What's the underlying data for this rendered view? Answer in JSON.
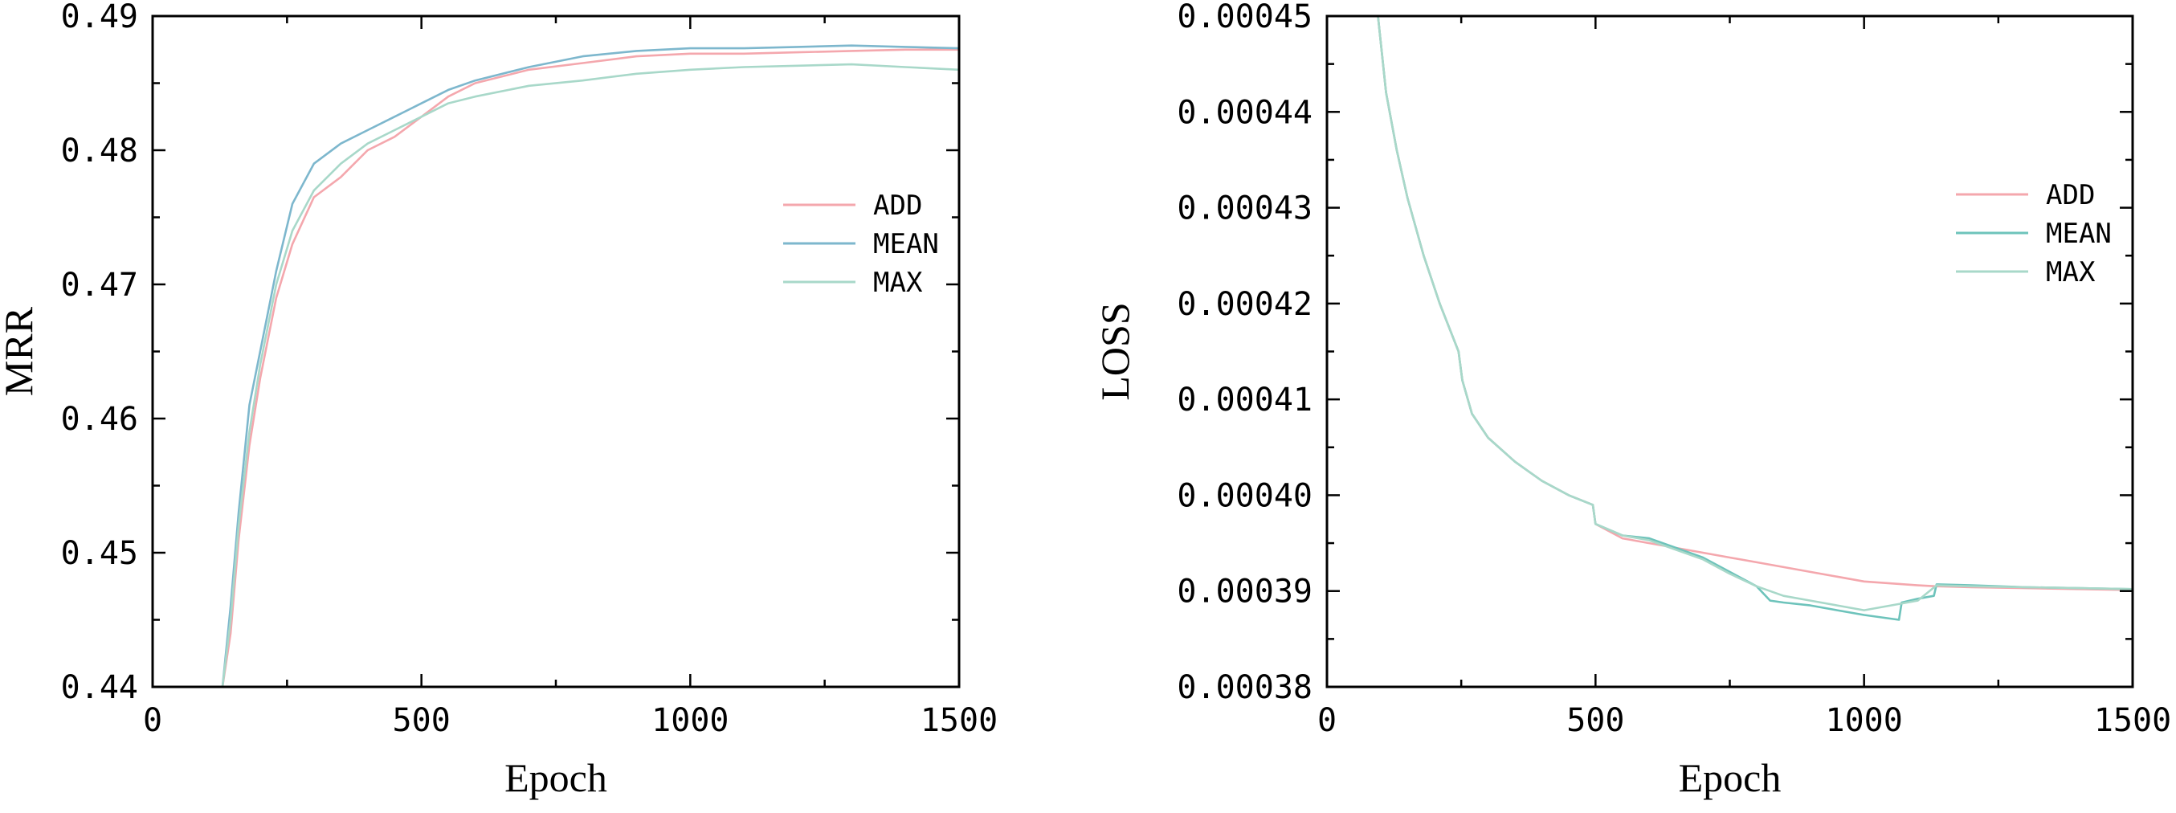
{
  "chart_data": [
    {
      "type": "line",
      "xlabel": "Epoch",
      "ylabel": "MRR",
      "xlim": [
        0,
        1500
      ],
      "ylim": [
        0.44,
        0.49
      ],
      "xticks": [
        0,
        500,
        1000,
        1500
      ],
      "xtick_labels": [
        "0",
        "500",
        "1000",
        "1500"
      ],
      "yticks": [
        0.44,
        0.45,
        0.46,
        0.47,
        0.48,
        0.49
      ],
      "ytick_labels": [
        "0.44",
        "0.45",
        "0.46",
        "0.47",
        "0.48",
        "0.49"
      ],
      "grid": false,
      "legend_position": "right",
      "series": [
        {
          "name": "ADD",
          "color": "#f4a7ad",
          "x": [
            130,
            145,
            160,
            180,
            200,
            230,
            260,
            300,
            350,
            400,
            450,
            500,
            550,
            600,
            700,
            800,
            900,
            1000,
            1100,
            1200,
            1300,
            1400,
            1500
          ],
          "y": [
            0.44,
            0.444,
            0.451,
            0.458,
            0.463,
            0.469,
            0.473,
            0.4765,
            0.478,
            0.48,
            0.481,
            0.4825,
            0.484,
            0.485,
            0.486,
            0.4865,
            0.487,
            0.4872,
            0.4872,
            0.4873,
            0.4874,
            0.4875,
            0.4875
          ]
        },
        {
          "name": "MEAN",
          "color": "#7db7cd",
          "x": [
            130,
            145,
            160,
            180,
            200,
            230,
            260,
            300,
            350,
            400,
            450,
            500,
            550,
            600,
            700,
            800,
            900,
            1000,
            1100,
            1200,
            1300,
            1400,
            1500
          ],
          "y": [
            0.44,
            0.446,
            0.453,
            0.461,
            0.465,
            0.471,
            0.476,
            0.479,
            0.4805,
            0.4815,
            0.4825,
            0.4835,
            0.4845,
            0.4852,
            0.4862,
            0.487,
            0.4874,
            0.4876,
            0.4876,
            0.4877,
            0.4878,
            0.4877,
            0.4876
          ]
        },
        {
          "name": "MAX",
          "color": "#a8d8c9",
          "x": [
            130,
            145,
            160,
            180,
            200,
            230,
            260,
            300,
            350,
            400,
            450,
            500,
            550,
            600,
            700,
            800,
            900,
            1000,
            1100,
            1200,
            1300,
            1400,
            1500
          ],
          "y": [
            0.44,
            0.445,
            0.452,
            0.459,
            0.464,
            0.47,
            0.474,
            0.477,
            0.479,
            0.4805,
            0.4815,
            0.4825,
            0.4835,
            0.484,
            0.4848,
            0.4852,
            0.4857,
            0.486,
            0.4862,
            0.4863,
            0.4864,
            0.4862,
            0.486
          ]
        }
      ]
    },
    {
      "type": "line",
      "xlabel": "Epoch",
      "ylabel": "LOSS",
      "xlim": [
        0,
        1500
      ],
      "ylim": [
        0.00038,
        0.00045
      ],
      "xticks": [
        0,
        500,
        1000,
        1500
      ],
      "xtick_labels": [
        "0",
        "500",
        "1000",
        "1500"
      ],
      "yticks": [
        0.00038,
        0.00039,
        0.0004,
        0.00041,
        0.00042,
        0.00043,
        0.00044,
        0.00045
      ],
      "ytick_labels": [
        "0.00038",
        "0.00039",
        "0.00040",
        "0.00041",
        "0.00042",
        "0.00043",
        "0.00044",
        "0.00045"
      ],
      "grid": false,
      "legend_position": "right",
      "series": [
        {
          "name": "ADD",
          "color": "#f4a7ad",
          "x": [
            95,
            110,
            130,
            150,
            180,
            210,
            245,
            252,
            270,
            300,
            350,
            400,
            450,
            495,
            500,
            550,
            600,
            650,
            700,
            750,
            800,
            850,
            900,
            950,
            1000,
            1050,
            1100,
            1135,
            1200,
            1300,
            1400,
            1500
          ],
          "y": [
            0.00045,
            0.000442,
            0.000436,
            0.000431,
            0.000425,
            0.00042,
            0.000415,
            0.000412,
            0.0004085,
            0.000406,
            0.0004035,
            0.0004015,
            0.0004,
            0.000399,
            0.000397,
            0.0003955,
            0.000395,
            0.0003945,
            0.000394,
            0.0003935,
            0.000393,
            0.0003925,
            0.000392,
            0.0003915,
            0.000391,
            0.0003908,
            0.0003906,
            0.0003905,
            0.0003904,
            0.0003903,
            0.0003902,
            0.0003901
          ]
        },
        {
          "name": "MEAN",
          "color": "#6dc3bb",
          "x": [
            95,
            110,
            130,
            150,
            180,
            210,
            245,
            252,
            270,
            300,
            350,
            400,
            450,
            495,
            500,
            550,
            600,
            650,
            700,
            750,
            800,
            825,
            850,
            900,
            950,
            1000,
            1065,
            1070,
            1100,
            1130,
            1135,
            1200,
            1300,
            1400,
            1500
          ],
          "y": [
            0.00045,
            0.000442,
            0.000436,
            0.000431,
            0.000425,
            0.00042,
            0.000415,
            0.000412,
            0.0004085,
            0.000406,
            0.0004035,
            0.0004015,
            0.0004,
            0.000399,
            0.000397,
            0.0003958,
            0.0003955,
            0.0003945,
            0.0003935,
            0.000392,
            0.0003905,
            0.000389,
            0.0003888,
            0.0003885,
            0.000388,
            0.0003875,
            0.000387,
            0.0003888,
            0.0003892,
            0.0003895,
            0.0003907,
            0.0003906,
            0.0003904,
            0.0003903,
            0.0003902
          ]
        },
        {
          "name": "MAX",
          "color": "#a8d8c9",
          "x": [
            95,
            110,
            130,
            150,
            180,
            210,
            245,
            252,
            270,
            300,
            350,
            400,
            450,
            495,
            500,
            550,
            600,
            650,
            700,
            750,
            800,
            850,
            900,
            950,
            1000,
            1050,
            1100,
            1135,
            1200,
            1300,
            1400,
            1500
          ],
          "y": [
            0.00045,
            0.000442,
            0.000436,
            0.000431,
            0.000425,
            0.00042,
            0.000415,
            0.000412,
            0.0004085,
            0.000406,
            0.0004035,
            0.0004015,
            0.0004,
            0.000399,
            0.000397,
            0.0003958,
            0.0003953,
            0.0003943,
            0.0003933,
            0.0003918,
            0.0003905,
            0.0003895,
            0.000389,
            0.0003885,
            0.000388,
            0.0003885,
            0.000389,
            0.0003906,
            0.0003905,
            0.0003904,
            0.0003903,
            0.0003902
          ]
        }
      ]
    }
  ]
}
